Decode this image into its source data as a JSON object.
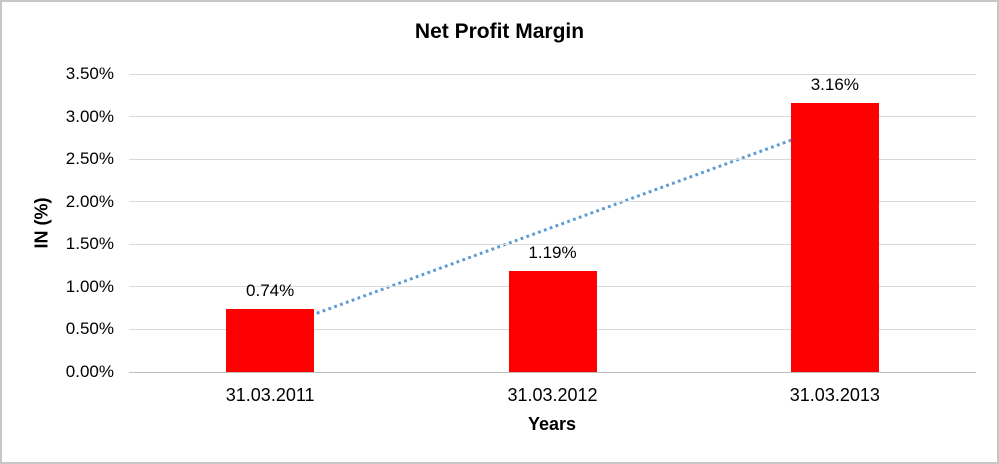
{
  "window": {
    "background": "#FFFFFF",
    "frame_border_color": "#C8C6C6"
  },
  "chart_data": {
    "type": "bar",
    "title": "Net Profit Margin",
    "categories": [
      "31.03.2011",
      "31.03.2012",
      "31.03.2013"
    ],
    "values": [
      0.74,
      1.19,
      3.16
    ],
    "data_labels": [
      "0.74%",
      "1.19%",
      "3.16%"
    ],
    "xlabel": "Years",
    "ylabel": "IN (%)",
    "ylim": [
      0,
      3.5
    ],
    "ytick_labels": [
      "3.50%",
      "3.00%",
      "2.50%",
      "2.00%",
      "1.50%",
      "1.00%",
      "0.50%",
      "0.00%"
    ],
    "ytick_values": [
      3.5,
      3.0,
      2.5,
      2.0,
      1.5,
      1.0,
      0.5,
      0.0
    ],
    "grid": true,
    "legend_position": "none",
    "bar_color": "#FF0000",
    "gridline_color": "#D9D9D9",
    "axis_line_color": "#BFBFBF",
    "text_color": "#000000",
    "trendline": {
      "type": "linear",
      "style": "dotted",
      "color": "#5B9BD5",
      "start_value": 0.49,
      "end_value": 2.91
    }
  }
}
